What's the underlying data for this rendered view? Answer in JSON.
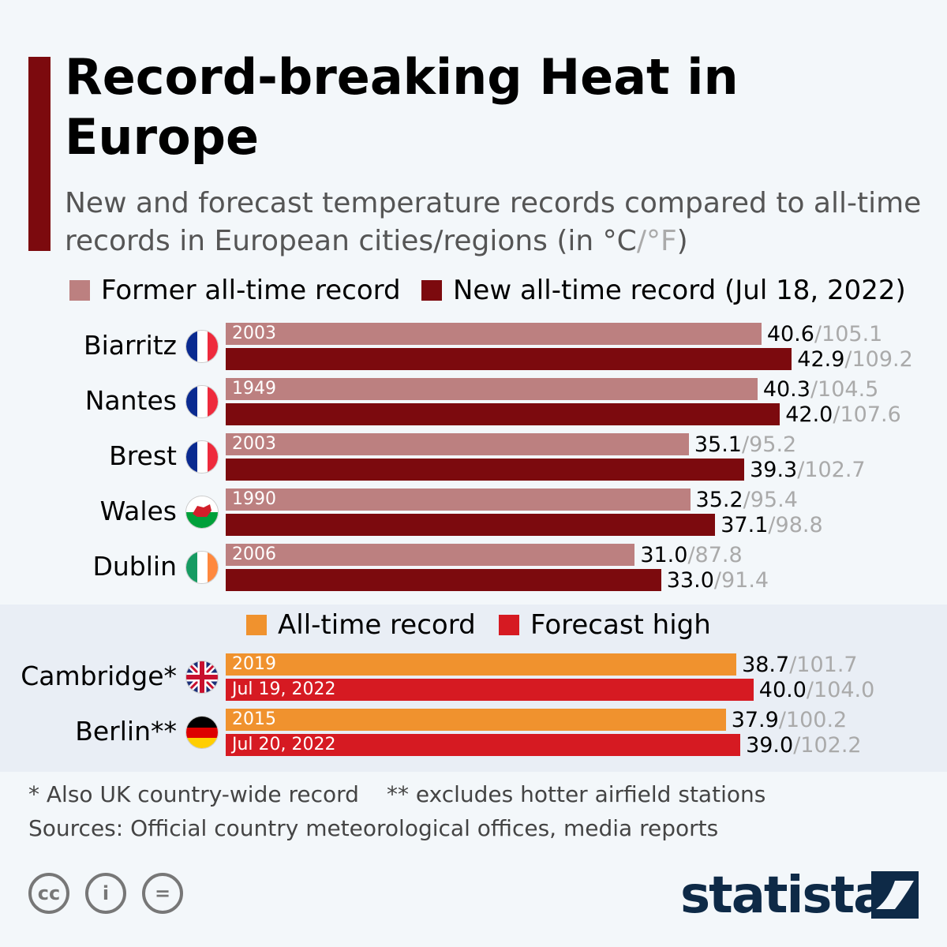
{
  "title": "Record-breaking Heat in Europe",
  "subtitle": "New and forecast temperature records compared to all-time records in European cities/regions (in °C",
  "subtitle_sep": "/°F",
  "subtitle_end": ")",
  "colors": {
    "former": "#bc8080",
    "new": "#7c0a0e",
    "alltime": "#f0922e",
    "forecast": "#d61a22",
    "accent": "#7c0a0e"
  },
  "chart_data": [
    {
      "type": "bar",
      "orientation": "horizontal",
      "legend": [
        "Former all-time record",
        "New all-time record (Jul 18, 2022)"
      ],
      "categories": [
        "Biarritz",
        "Nantes",
        "Brest",
        "Wales",
        "Dublin"
      ],
      "flags": [
        "france",
        "france",
        "france",
        "wales",
        "ireland"
      ],
      "series": [
        {
          "name": "Former all-time record",
          "values_c": [
            40.6,
            40.3,
            35.1,
            35.2,
            31.0
          ],
          "values_f": [
            "105.1",
            "104.5",
            "95.2",
            "95.4",
            "87.8"
          ],
          "labels": [
            "2003",
            "1949",
            "2003",
            "1990",
            "2006"
          ],
          "values_c_text": [
            "40.6",
            "40.3",
            "35.1",
            "35.2",
            "31.0"
          ]
        },
        {
          "name": "New all-time record (Jul 18, 2022)",
          "values_c": [
            42.9,
            42.0,
            39.3,
            37.1,
            33.0
          ],
          "values_f": [
            "109.2",
            "107.6",
            "102.7",
            "98.8",
            "91.4"
          ],
          "labels": [
            "",
            "",
            "",
            "",
            ""
          ],
          "values_c_text": [
            "42.9",
            "42.0",
            "39.3",
            "37.1",
            "33.0"
          ]
        }
      ]
    },
    {
      "type": "bar",
      "orientation": "horizontal",
      "legend": [
        "All-time record",
        "Forecast high"
      ],
      "categories": [
        "Cambridge*",
        "Berlin**"
      ],
      "flags": [
        "uk",
        "germany"
      ],
      "series": [
        {
          "name": "All-time record",
          "values_c": [
            38.7,
            37.9
          ],
          "values_f": [
            "101.7",
            "100.2"
          ],
          "labels": [
            "2019",
            "2015"
          ],
          "values_c_text": [
            "38.7",
            "37.9"
          ]
        },
        {
          "name": "Forecast high",
          "values_c": [
            40.0,
            39.0
          ],
          "values_f": [
            "104.0",
            "102.2"
          ],
          "labels": [
            "Jul 19, 2022",
            "Jul 20, 2022"
          ],
          "values_c_text": [
            "40.0",
            "39.0"
          ]
        }
      ]
    }
  ],
  "notes": [
    "* Also UK country-wide record",
    "** excludes hotter airfield stations"
  ],
  "sources": "Sources: Official country meteorological offices, media reports",
  "logo": "statista",
  "license_icons": [
    "cc",
    "by",
    "nd"
  ]
}
